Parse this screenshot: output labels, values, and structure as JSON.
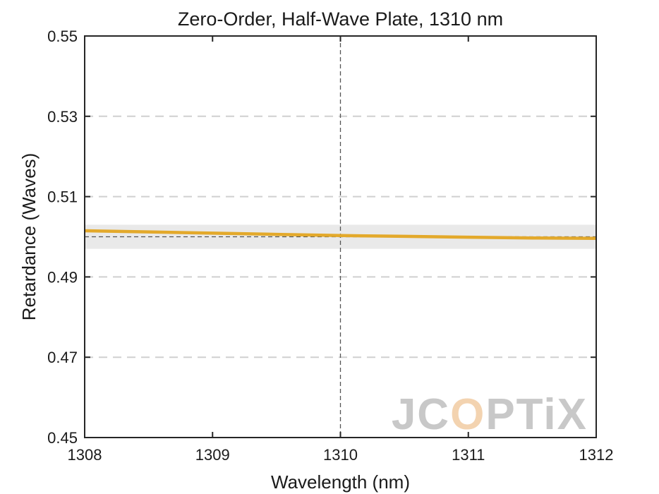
{
  "chart_data": {
    "type": "line",
    "title": "Zero-Order, Half-Wave Plate, 1310 nm",
    "xlabel": "Wavelength (nm)",
    "ylabel": "Retardance (Waves)",
    "xlim": [
      1308,
      1312
    ],
    "ylim": [
      0.45,
      0.55
    ],
    "x_ticks": [
      1308,
      1309,
      1310,
      1311,
      1312
    ],
    "y_ticks": [
      "0.45",
      "0.47",
      "0.49",
      "0.51",
      "0.53",
      "0.55"
    ],
    "grid": "horizontal-dashed",
    "series": [
      {
        "x": [
          1308,
          1308.5,
          1309,
          1309.5,
          1310,
          1310.5,
          1311,
          1311.5,
          1312
        ],
        "y": [
          0.5015,
          0.5012,
          0.5009,
          0.5006,
          0.5003,
          0.5001,
          0.4999,
          0.4997,
          0.4996
        ],
        "color": "#e3a92b"
      }
    ],
    "reference_lines": {
      "horizontal_y": 0.5,
      "vertical_x": 1310
    },
    "tolerance_band": [
      0.497,
      0.503
    ],
    "logo": {
      "parts": [
        {
          "text": "JC",
          "color": "#c8c8c8"
        },
        {
          "text": "O",
          "color": "#f3d3b0"
        },
        {
          "text": "PTiX",
          "color": "#c8c8c8"
        }
      ]
    }
  }
}
